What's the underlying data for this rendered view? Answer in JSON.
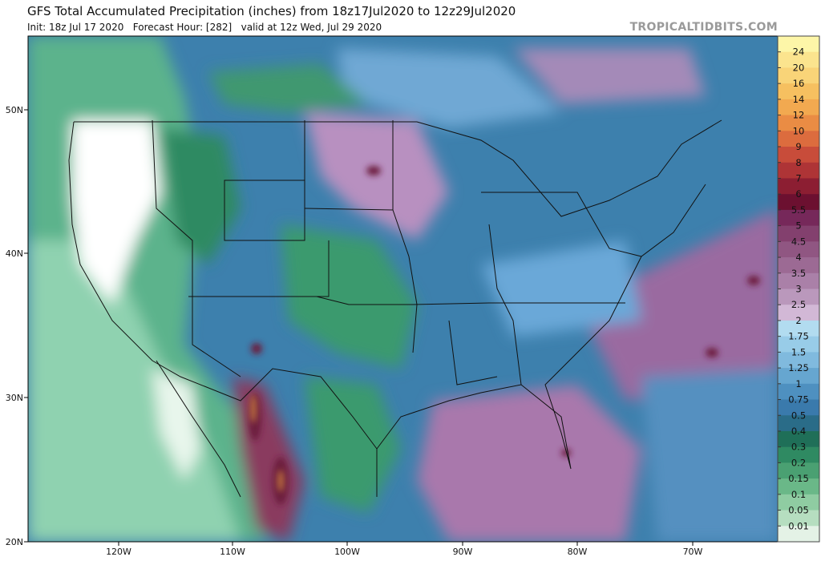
{
  "header": {
    "title": "GFS Total Accumulated Precipitation (inches) from 18z17Jul2020 to 12z29Jul2020",
    "subtitle": "Init: 18z Jul 17 2020   Forecast Hour: [282]   valid at 12z Wed, Jul 29 2020",
    "watermark": "TROPICALTIDBITS.COM"
  },
  "map": {
    "latitude_labels": [
      "50N",
      "40N",
      "30N",
      "20N"
    ],
    "longitude_labels": [
      "120W",
      "110W",
      "100W",
      "90W",
      "80W",
      "70W"
    ]
  },
  "colorbar": {
    "labels": [
      "24",
      "20",
      "16",
      "14",
      "12",
      "10",
      "9",
      "8",
      "7",
      "6",
      "5.5",
      "5",
      "4.5",
      "4",
      "3.5",
      "3",
      "2.5",
      "2",
      "1.75",
      "1.5",
      "1.25",
      "1",
      "0.75",
      "0.5",
      "0.4",
      "0.3",
      "0.2",
      "0.15",
      "0.1",
      "0.05",
      "0.01"
    ],
    "colors": [
      "#fdf6a8",
      "#fbe48e",
      "#f9d478",
      "#f6c060",
      "#f2a950",
      "#ea8c44",
      "#dc6c3e",
      "#c84c3a",
      "#ae3436",
      "#8c1e32",
      "#6c1030",
      "#76285a",
      "#83406e",
      "#905682",
      "#9c6a94",
      "#aa80a8",
      "#ba98bc",
      "#d2b8d6",
      "#b2dcf0",
      "#98cce8",
      "#80bade",
      "#66a6d0",
      "#4e90c0",
      "#3a7aac",
      "#2a6c88",
      "#1f6f58",
      "#2f8a62",
      "#4aa072",
      "#6ab888",
      "#8fcca2",
      "#b6dec0",
      "#e4f2e6"
    ]
  }
}
